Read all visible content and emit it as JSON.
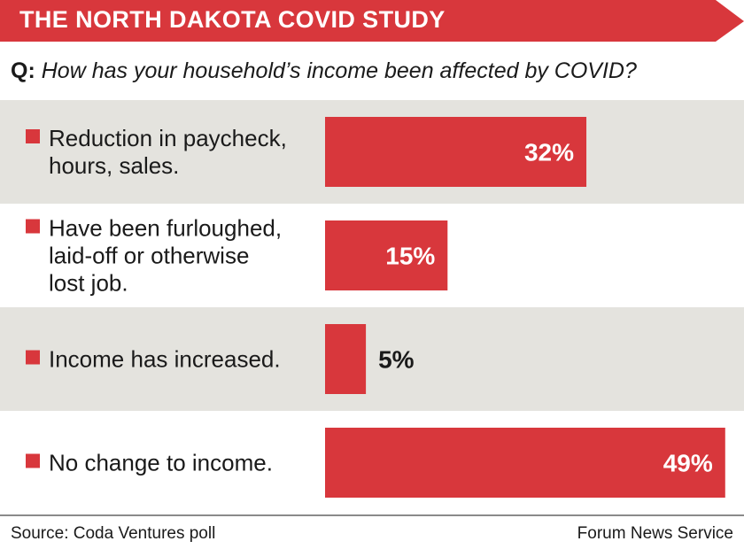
{
  "header": {
    "title": "THE NORTH DAKOTA COVID STUDY",
    "question_prefix": "Q:",
    "question_text": "How has your household’s income been affected by COVID?"
  },
  "colors": {
    "accent": "#d8373c",
    "row_shade": "#e4e3de",
    "value_on_bar": "#ffffff",
    "value_off_bar": "#1a1a1a"
  },
  "chart_data": {
    "type": "bar",
    "orientation": "horizontal",
    "unit": "%",
    "xlim": [
      0,
      50
    ],
    "categories": [
      [
        "Reduction in paycheck,",
        "hours, sales."
      ],
      [
        "Have been furloughed,",
        "laid-off or otherwise",
        "lost job."
      ],
      [
        "Income has increased."
      ],
      [
        "No change to income."
      ]
    ],
    "values": [
      32,
      15,
      5,
      49
    ],
    "value_labels": [
      "32%",
      "15%",
      "5%",
      "49%"
    ]
  },
  "footer": {
    "source": "Source: Coda Ventures poll",
    "credit": "Forum News Service"
  }
}
